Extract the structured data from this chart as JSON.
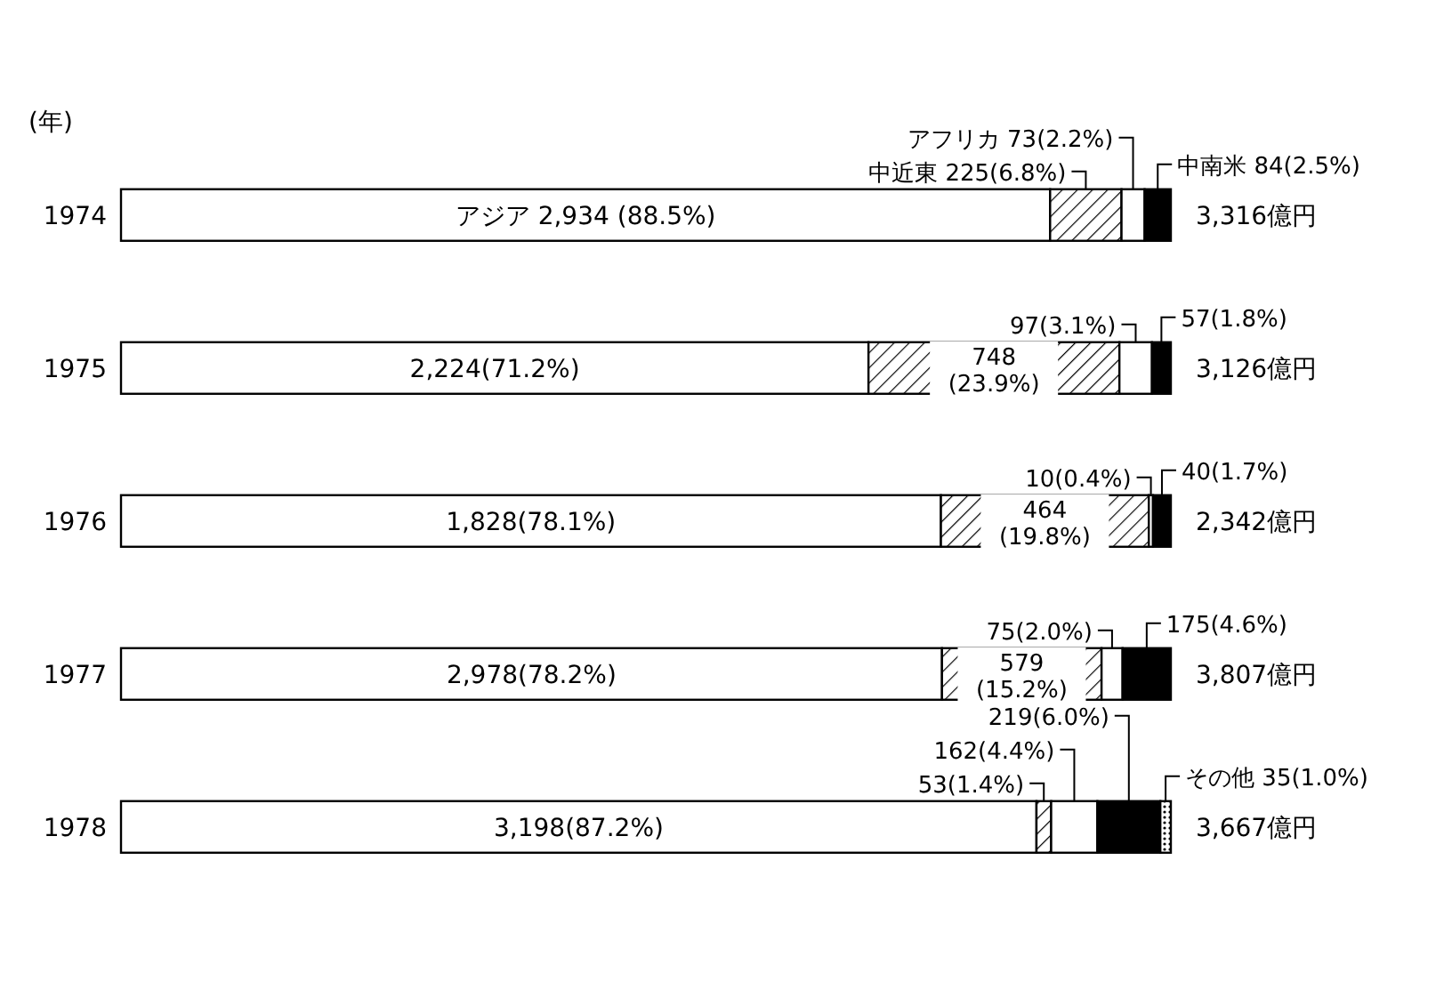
{
  "chart_data": {
    "type": "bar",
    "orientation": "horizontal",
    "stacked": true,
    "ylabel": "(年)",
    "legend": false,
    "categories": [
      "1974",
      "1975",
      "1976",
      "1977",
      "1978"
    ],
    "series": [
      {
        "name": "アジア",
        "color": "#ffffff",
        "values": [
          88.5,
          71.2,
          78.1,
          78.2,
          87.2
        ],
        "value_labels": [
          "2,934 (88.5%)",
          "2,224(71.2%)",
          "1,828(78.1%)",
          "2,978(78.2%)",
          "3,198(87.2%)"
        ]
      },
      {
        "name": "中近東",
        "color": "#000000",
        "values": [
          6.8,
          23.9,
          19.8,
          15.2,
          1.4
        ],
        "value_labels": [
          "225(6.8%)",
          "748(23.9%)",
          "464(19.8%)",
          "579(15.2%)",
          "53(1.4%)"
        ]
      },
      {
        "name": "アフリカ",
        "color": "#ffffff",
        "values": [
          2.2,
          3.1,
          0.4,
          2.0,
          4.4
        ],
        "value_labels": [
          "73(2.2%)",
          "97(3.1%)",
          "10(0.4%)",
          "75(2.0%)",
          "162(4.4%)"
        ]
      },
      {
        "name": "中南米",
        "color": "#000000",
        "values": [
          2.5,
          1.8,
          1.7,
          4.6,
          6.0
        ],
        "value_labels": [
          "84(2.5%)",
          "57(1.8%)",
          "40(1.7%)",
          "175(4.6%)",
          "219(6.0%)"
        ]
      },
      {
        "name": "その他",
        "color": "#000000",
        "values": [
          null,
          null,
          null,
          null,
          1.0
        ],
        "value_labels": [
          null,
          null,
          null,
          null,
          "35(1.0%)"
        ]
      }
    ],
    "annotations": [
      "3,316億円",
      "3,126億円",
      "2,342億円",
      "3,807億円",
      "3,667億円"
    ]
  }
}
